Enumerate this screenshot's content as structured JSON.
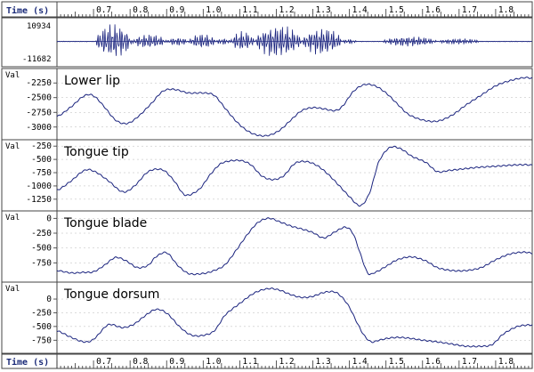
{
  "chart_data": {
    "type": "line",
    "time_axis": {
      "label": "Time (s)",
      "range": [
        0.6,
        1.9
      ],
      "tick_labels": [
        "0.7",
        "0.8",
        "0.9",
        "1.0",
        "1.1",
        "1.2",
        "1.3",
        "1.4",
        "1.5",
        "1.6",
        "1.7",
        "1.8"
      ],
      "tick_values": [
        0.7,
        0.8,
        0.9,
        1.0,
        1.1,
        1.2,
        1.3,
        1.4,
        1.5,
        1.6,
        1.7,
        1.8
      ]
    },
    "waveform": {
      "ymax_label": "10934",
      "ymin_label": "-11682",
      "ylim": [
        -11682,
        10934
      ],
      "bursts": [
        {
          "start": 0.705,
          "end": 0.805,
          "amp": 0.82
        },
        {
          "start": 0.805,
          "end": 0.9,
          "amp": 0.34
        },
        {
          "start": 0.9,
          "end": 0.96,
          "amp": 0.2
        },
        {
          "start": 0.96,
          "end": 1.035,
          "amp": 0.36
        },
        {
          "start": 1.035,
          "end": 1.075,
          "amp": 0.16
        },
        {
          "start": 1.075,
          "end": 1.14,
          "amp": 0.48
        },
        {
          "start": 1.14,
          "end": 1.27,
          "amp": 0.78
        },
        {
          "start": 1.27,
          "end": 1.38,
          "amp": 0.66
        },
        {
          "start": 1.38,
          "end": 1.42,
          "amp": 0.12
        },
        {
          "start": 1.49,
          "end": 1.64,
          "amp": 0.24
        },
        {
          "start": 1.64,
          "end": 1.76,
          "amp": 0.14
        }
      ]
    },
    "series": [
      {
        "name": "Lower lip",
        "ylabel": "Val",
        "ylim": [
          -3170,
          -2050
        ],
        "yticks": [
          -2250,
          -2500,
          -2750,
          -3000
        ],
        "x": [
          0.6,
          0.64,
          0.675,
          0.7,
          0.73,
          0.76,
          0.79,
          0.82,
          0.86,
          0.89,
          0.92,
          0.96,
          1.0,
          1.03,
          1.06,
          1.09,
          1.12,
          1.15,
          1.18,
          1.21,
          1.24,
          1.27,
          1.3,
          1.33,
          1.36,
          1.38,
          1.41,
          1.44,
          1.47,
          1.5,
          1.53,
          1.56,
          1.6,
          1.64,
          1.68,
          1.72,
          1.76,
          1.8,
          1.84,
          1.88,
          1.9
        ],
        "y": [
          -2820,
          -2650,
          -2470,
          -2470,
          -2660,
          -2880,
          -2940,
          -2830,
          -2590,
          -2390,
          -2360,
          -2420,
          -2420,
          -2460,
          -2680,
          -2900,
          -3060,
          -3140,
          -3140,
          -3050,
          -2880,
          -2720,
          -2670,
          -2690,
          -2720,
          -2650,
          -2400,
          -2280,
          -2300,
          -2420,
          -2600,
          -2780,
          -2880,
          -2900,
          -2800,
          -2620,
          -2460,
          -2300,
          -2210,
          -2160,
          -2170
        ]
      },
      {
        "name": "Tongue tip",
        "ylabel": "Val",
        "ylim": [
          -1420,
          -180
        ],
        "yticks": [
          -250,
          -500,
          -750,
          -1000,
          -1250
        ],
        "x": [
          0.6,
          0.64,
          0.675,
          0.7,
          0.74,
          0.78,
          0.81,
          0.85,
          0.89,
          0.92,
          0.95,
          0.99,
          1.02,
          1.05,
          1.1,
          1.13,
          1.16,
          1.19,
          1.22,
          1.25,
          1.28,
          1.31,
          1.34,
          1.37,
          1.4,
          1.43,
          1.455,
          1.48,
          1.51,
          1.54,
          1.57,
          1.61,
          1.64,
          1.67,
          1.71,
          1.75,
          1.8,
          1.84,
          1.88,
          1.9
        ],
        "y": [
          -1080,
          -900,
          -710,
          -720,
          -900,
          -1110,
          -1010,
          -730,
          -700,
          -900,
          -1170,
          -1060,
          -780,
          -570,
          -520,
          -600,
          -810,
          -880,
          -810,
          -580,
          -540,
          -610,
          -770,
          -980,
          -1200,
          -1370,
          -1130,
          -550,
          -280,
          -300,
          -440,
          -560,
          -730,
          -710,
          -680,
          -650,
          -630,
          -610,
          -600,
          -610
        ]
      },
      {
        "name": "Tongue blade",
        "ylabel": "Val",
        "ylim": [
          -1030,
          80
        ],
        "yticks": [
          0,
          -250,
          -500,
          -750
        ],
        "x": [
          0.6,
          0.64,
          0.675,
          0.7,
          0.73,
          0.76,
          0.79,
          0.82,
          0.85,
          0.87,
          0.9,
          0.93,
          0.96,
          1.0,
          1.03,
          1.06,
          1.09,
          1.12,
          1.15,
          1.18,
          1.21,
          1.24,
          1.27,
          1.3,
          1.33,
          1.36,
          1.39,
          1.41,
          1.43,
          1.45,
          1.47,
          1.5,
          1.53,
          1.57,
          1.61,
          1.64,
          1.68,
          1.72,
          1.76,
          1.8,
          1.84,
          1.88,
          1.9
        ],
        "y": [
          -880,
          -920,
          -910,
          -900,
          -790,
          -660,
          -720,
          -830,
          -790,
          -650,
          -580,
          -790,
          -930,
          -930,
          -880,
          -780,
          -540,
          -280,
          -70,
          0,
          -60,
          -130,
          -180,
          -240,
          -330,
          -230,
          -150,
          -260,
          -600,
          -920,
          -910,
          -810,
          -700,
          -650,
          -720,
          -830,
          -880,
          -880,
          -830,
          -700,
          -600,
          -570,
          -590
        ]
      },
      {
        "name": "Tongue dorsum",
        "ylabel": "Val",
        "ylim": [
          -940,
          260
        ],
        "yticks": [
          0,
          -250,
          -500,
          -750
        ],
        "x": [
          0.6,
          0.64,
          0.675,
          0.7,
          0.74,
          0.78,
          0.81,
          0.84,
          0.87,
          0.9,
          0.94,
          0.97,
          1.0,
          1.03,
          1.06,
          1.1,
          1.14,
          1.18,
          1.21,
          1.24,
          1.27,
          1.3,
          1.33,
          1.36,
          1.38,
          1.4,
          1.42,
          1.44,
          1.46,
          1.48,
          1.51,
          1.54,
          1.57,
          1.6,
          1.64,
          1.68,
          1.72,
          1.76,
          1.79,
          1.82,
          1.86,
          1.9
        ],
        "y": [
          -580,
          -700,
          -780,
          -730,
          -470,
          -520,
          -460,
          -310,
          -190,
          -260,
          -530,
          -660,
          -660,
          -580,
          -290,
          -80,
          110,
          190,
          160,
          80,
          30,
          50,
          120,
          130,
          30,
          -150,
          -420,
          -660,
          -780,
          -750,
          -710,
          -700,
          -720,
          -750,
          -780,
          -820,
          -860,
          -860,
          -830,
          -640,
          -500,
          -470
        ]
      }
    ]
  }
}
